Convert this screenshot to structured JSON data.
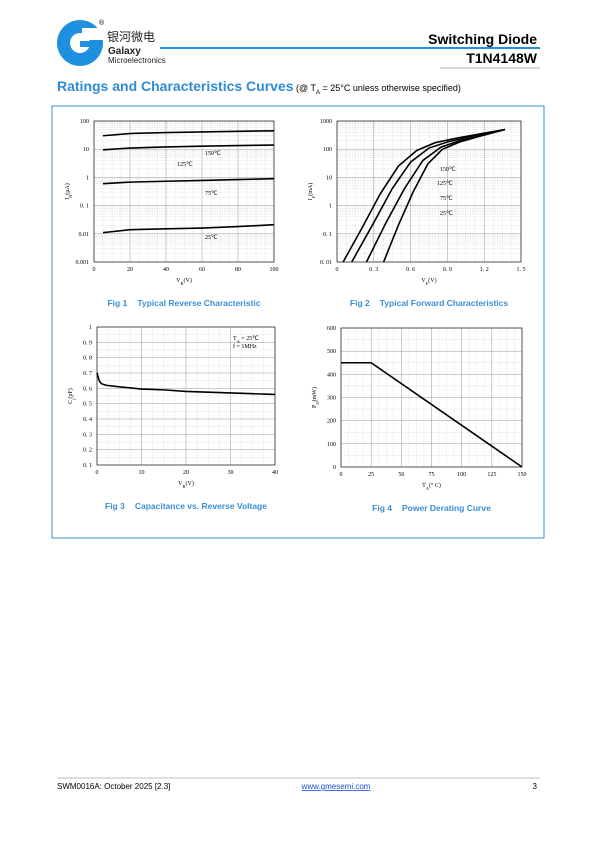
{
  "header": {
    "registered": "®",
    "logo_cn": "银河微电",
    "logo_en": "Galaxy",
    "logo_sub": "Microelectronics",
    "title": "Switching Diode",
    "part": "T1N4148W"
  },
  "section": {
    "title": "Ratings and Characteristics Curves",
    "cond_open": "(@ T",
    "cond_sub": "A",
    "cond_rest": " = 25°C unless otherwise specified)"
  },
  "chart_data": [
    {
      "type": "line",
      "fig": "Fig 1",
      "title": "Typical Reverse Characteristic",
      "x_label": "V",
      "x_label_sub": "R",
      "x_label_unit": "(V)",
      "y_label": "I",
      "y_label_sub": "R",
      "y_label_unit": "(μA)",
      "xlim": [
        0,
        100
      ],
      "xticks": [
        0,
        20,
        40,
        60,
        80,
        100
      ],
      "ylim": [
        0.001,
        100
      ],
      "ylog": true,
      "yticks": [
        0.001,
        0.01,
        {
          "value": 0.1,
          "label": "0. 1"
        },
        1,
        10,
        100
      ],
      "grid": true,
      "x": [
        5,
        20,
        40,
        60,
        80,
        100
      ],
      "series": [
        {
          "name": "150℃",
          "color": "#000000",
          "values": [
            30,
            36,
            39,
            41,
            43,
            45
          ]
        },
        {
          "name": "125℃",
          "color": "#000000",
          "values": [
            9.5,
            11,
            12,
            12.8,
            13.5,
            14
          ]
        },
        {
          "name": "75℃",
          "color": "#000000",
          "values": [
            0.6,
            0.68,
            0.73,
            0.78,
            0.84,
            0.9
          ]
        },
        {
          "name": "25℃",
          "color": "#000000",
          "values": [
            0.011,
            0.014,
            0.015,
            0.016,
            0.018,
            0.021
          ]
        }
      ]
    },
    {
      "type": "line",
      "fig": "Fig 2",
      "title": "Typical Forward Characteristics",
      "x_label": "V",
      "x_label_sub": "F",
      "x_label_unit": "(V)",
      "y_label": "I",
      "y_label_sub": "F",
      "y_label_unit": "(mA)",
      "xlim": [
        0,
        1.5
      ],
      "xticks": [
        0,
        {
          "value": 0.3,
          "label": "0. 3"
        },
        {
          "value": 0.6,
          "label": "0. 6"
        },
        {
          "value": 0.9,
          "label": "0. 9"
        },
        {
          "value": 1.2,
          "label": "1. 2"
        },
        {
          "value": 1.5,
          "label": "1. 5"
        }
      ],
      "ylim": [
        0.01,
        1000
      ],
      "ylog": true,
      "yticks": [
        {
          "value": 0.01,
          "label": "0. 01"
        },
        {
          "value": 0.1,
          "label": "0. 1"
        },
        1,
        10,
        100,
        1000
      ],
      "grid": true,
      "series": [
        {
          "name": "150℃",
          "color": "#000000",
          "x": [
            0.05,
            0.2,
            0.35,
            0.5,
            0.65,
            0.8,
            1.0,
            1.2,
            1.37
          ],
          "values": [
            0.01,
            0.15,
            2.5,
            25,
            90,
            170,
            260,
            370,
            500
          ]
        },
        {
          "name": "125℃",
          "color": "#000000",
          "x": [
            0.12,
            0.3,
            0.45,
            0.6,
            0.75,
            0.9,
            1.1,
            1.37
          ],
          "values": [
            0.01,
            0.25,
            4,
            35,
            110,
            180,
            290,
            500
          ]
        },
        {
          "name": "75℃",
          "color": "#000000",
          "x": [
            0.24,
            0.4,
            0.55,
            0.7,
            0.85,
            1.0,
            1.2,
            1.37
          ],
          "values": [
            0.01,
            0.25,
            4,
            40,
            120,
            200,
            320,
            500
          ]
        },
        {
          "name": "25℃",
          "color": "#000000",
          "x": [
            0.38,
            0.5,
            0.62,
            0.74,
            0.86,
            1.0,
            1.2,
            1.37
          ],
          "values": [
            0.01,
            0.2,
            3,
            30,
            100,
            180,
            320,
            500
          ]
        }
      ]
    },
    {
      "type": "line",
      "fig": "Fig 3",
      "title": "Capacitance vs. Reverse Voltage",
      "x_label": "V",
      "x_label_sub": "R",
      "x_label_unit": "(V)",
      "y_label": "C",
      "y_label_sub": "j",
      "y_label_unit": "(pF)",
      "annotation": "T",
      "annotation_sub": "A",
      "annotation_rest": " = 25℃",
      "annotation2": "f = 1MHz",
      "xlim": [
        0,
        40
      ],
      "xticks": [
        0,
        10,
        20,
        30,
        40
      ],
      "ylim": [
        0.1,
        1
      ],
      "yticks": [
        {
          "value": 0.1,
          "label": "0. 1"
        },
        {
          "value": 0.2,
          "label": "0. 2"
        },
        {
          "value": 0.3,
          "label": "0. 3"
        },
        {
          "value": 0.4,
          "label": "0. 4"
        },
        {
          "value": 0.5,
          "label": "0. 5"
        },
        {
          "value": 0.6,
          "label": "0. 6"
        },
        {
          "value": 0.7,
          "label": "0. 7"
        },
        {
          "value": 0.8,
          "label": "0. 8"
        },
        {
          "value": 0.9,
          "label": "0. 9"
        },
        1
      ],
      "grid": true,
      "x": [
        0,
        0.5,
        1,
        2,
        5,
        10,
        15,
        20,
        25,
        30,
        35,
        40
      ],
      "series": [
        {
          "color": "#000000",
          "values": [
            0.7,
            0.65,
            0.63,
            0.62,
            0.61,
            0.595,
            0.59,
            0.58,
            0.575,
            0.57,
            0.565,
            0.56
          ]
        }
      ]
    },
    {
      "type": "line",
      "fig": "Fig 4",
      "title": "Power Derating Curve",
      "x_label": "T",
      "x_label_sub": "A",
      "x_label_unit": "(° C)",
      "y_label": "P",
      "y_label_sub": "D",
      "y_label_unit": "(mW)",
      "xlim": [
        0,
        150
      ],
      "xticks": [
        0,
        25,
        50,
        75,
        100,
        125,
        150
      ],
      "ylim": [
        0,
        600
      ],
      "yticks": [
        0,
        100,
        200,
        300,
        400,
        500,
        600
      ],
      "grid": true,
      "x": [
        0,
        25,
        150
      ],
      "series": [
        {
          "color": "#000000",
          "values": [
            450,
            450,
            0
          ]
        }
      ]
    }
  ],
  "footer": {
    "doc": "SWM0016A: October 2025 [2.3]",
    "url": "www.gmesemi.com",
    "page": "3"
  }
}
